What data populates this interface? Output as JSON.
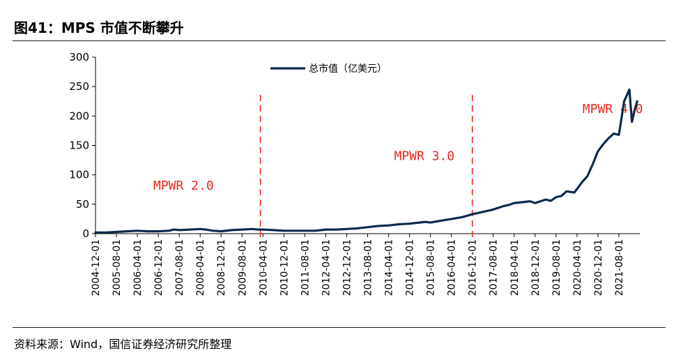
{
  "figure": {
    "title": "图41：MPS 市值不断攀升",
    "source": "资料来源：Wind，国信证券经济研究所整理"
  },
  "colors": {
    "line": "#0d2b4e",
    "annotation": "#e8281e",
    "axis": "#000000"
  },
  "chart_data": {
    "type": "line",
    "title": "",
    "xlabel": "",
    "ylabel": "",
    "ylim": [
      0,
      300
    ],
    "yticks": [
      0,
      50,
      100,
      150,
      200,
      250,
      300
    ],
    "grid": false,
    "legend": {
      "placement": "top-center",
      "entries": [
        "总市值（亿美元）"
      ]
    },
    "x_tick_labels": [
      "2004-12-01",
      "2005-08-01",
      "2006-04-01",
      "2006-12-01",
      "2007-08-01",
      "2008-04-01",
      "2008-12-01",
      "2009-08-01",
      "2010-04-01",
      "2010-12-01",
      "2011-08-01",
      "2012-04-01",
      "2012-12-01",
      "2013-08-01",
      "2014-04-01",
      "2014-12-01",
      "2015-08-01",
      "2016-04-01",
      "2016-12-01",
      "2017-08-01",
      "2018-04-01",
      "2018-12-01",
      "2019-08-01",
      "2020-04-01",
      "2020-12-01",
      "2021-08-01"
    ],
    "series": [
      {
        "name": "总市值（亿美元）",
        "x": [
          "2004-12",
          "2005-04",
          "2005-08",
          "2005-12",
          "2006-04",
          "2006-08",
          "2006-12",
          "2007-04",
          "2007-06",
          "2007-08",
          "2007-12",
          "2008-04",
          "2008-06",
          "2008-09",
          "2008-12",
          "2009-04",
          "2009-08",
          "2009-12",
          "2010-02",
          "2010-04",
          "2010-08",
          "2010-12",
          "2011-04",
          "2011-08",
          "2011-12",
          "2012-04",
          "2012-08",
          "2012-12",
          "2013-04",
          "2013-08",
          "2013-12",
          "2014-04",
          "2014-08",
          "2014-12",
          "2015-04",
          "2015-06",
          "2015-08",
          "2015-12",
          "2016-04",
          "2016-08",
          "2016-12",
          "2017-04",
          "2017-08",
          "2017-12",
          "2018-02",
          "2018-04",
          "2018-08",
          "2018-10",
          "2018-12",
          "2019-02",
          "2019-04",
          "2019-06",
          "2019-08",
          "2019-10",
          "2019-12",
          "2020-03",
          "2020-06",
          "2020-08",
          "2020-10",
          "2020-12",
          "2021-02",
          "2021-04",
          "2021-06",
          "2021-08",
          "2021-10",
          "2021-12",
          "2022-01",
          "2022-02",
          "2022-03"
        ],
        "values": [
          2,
          2,
          3,
          4,
          5,
          4,
          4,
          5,
          7,
          6,
          7,
          8,
          7,
          5,
          4,
          6,
          7,
          8,
          7,
          7,
          6,
          5,
          5,
          5,
          5,
          7,
          7,
          8,
          9,
          11,
          13,
          14,
          16,
          17,
          19,
          20,
          19,
          22,
          25,
          28,
          33,
          37,
          41,
          47,
          49,
          52,
          54,
          55,
          52,
          55,
          58,
          56,
          62,
          64,
          72,
          70,
          88,
          98,
          118,
          140,
          152,
          162,
          170,
          168,
          225,
          245,
          190,
          210,
          225
        ]
      }
    ],
    "annotations": [
      {
        "label": "MPWR 2.0",
        "at_x": "2004-12",
        "y": 75
      },
      {
        "label": "MPWR 3.0",
        "at_x": "2012-08",
        "y": 125
      },
      {
        "label": "MPWR 4.0",
        "at_x": "2018-08",
        "y": 205
      }
    ],
    "vlines": [
      {
        "x": "2010-03",
        "style": "dashed"
      },
      {
        "x": "2016-12",
        "style": "dashed"
      }
    ]
  }
}
